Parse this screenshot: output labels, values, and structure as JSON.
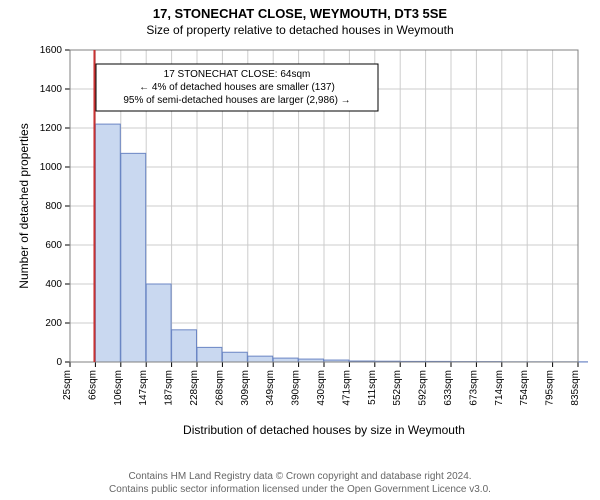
{
  "title": "17, STONECHAT CLOSE, WEYMOUTH, DT3 5SE",
  "subtitle": "Size of property relative to detached houses in Weymouth",
  "footer_line1": "Contains HM Land Registry data © Crown copyright and database right 2024.",
  "footer_line2": "Contains public sector information licensed under the Open Government Licence v3.0.",
  "chart": {
    "type": "histogram",
    "background_color": "#ffffff",
    "plot_border_color": "#808080",
    "grid_color": "#cccccc",
    "bar_fill": "#c9d8f0",
    "bar_stroke": "#6b86c4",
    "marker_line_color": "#c83232",
    "ylabel": "Number of detached properties",
    "xlabel": "Distribution of detached houses by size in Weymouth",
    "label_fontsize": 12,
    "tick_fontsize": 10,
    "ylim": [
      0,
      1600
    ],
    "ytick_step": 200,
    "x_start": 25,
    "x_step": 40.5,
    "x_tick_labels": [
      "25sqm",
      "66sqm",
      "106sqm",
      "147sqm",
      "187sqm",
      "228sqm",
      "268sqm",
      "309sqm",
      "349sqm",
      "390sqm",
      "430sqm",
      "471sqm",
      "511sqm",
      "552sqm",
      "592sqm",
      "633sqm",
      "673sqm",
      "714sqm",
      "754sqm",
      "795sqm",
      "835sqm"
    ],
    "values": [
      0,
      1220,
      1070,
      400,
      165,
      75,
      50,
      30,
      20,
      15,
      10,
      5,
      4,
      3,
      3,
      2,
      2,
      1,
      1,
      1,
      1
    ],
    "marker_x_value": 64,
    "annotation": {
      "lines": [
        "17 STONECHAT CLOSE: 64sqm",
        "← 4% of detached houses are smaller (137)",
        "95% of semi-detached houses are larger (2,986) →"
      ],
      "border_color": "#000000",
      "bg": "#ffffff"
    }
  }
}
